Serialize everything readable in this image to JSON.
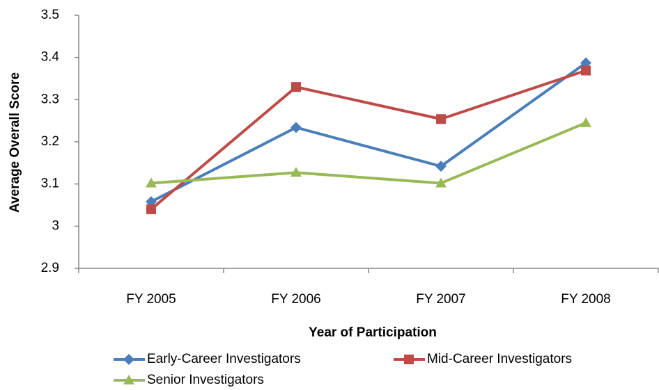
{
  "chart_data": {
    "type": "line",
    "x_label": "Year of Participation",
    "y_label": "Average Overall Score",
    "categories": [
      "FY 2005",
      "FY 2006",
      "FY 2007",
      "FY 2008"
    ],
    "series": [
      {
        "name": "Early-Career Investigators",
        "color": "#4a7ebb",
        "marker": "diamond",
        "values": [
          3.058,
          3.234,
          3.142,
          3.387
        ]
      },
      {
        "name": "Mid-Career Investigators",
        "color": "#be4b48",
        "marker": "square",
        "values": [
          3.04,
          3.33,
          3.254,
          3.369
        ]
      },
      {
        "name": "Senior Investigators",
        "color": "#98b954",
        "marker": "triangle",
        "values": [
          3.102,
          3.127,
          3.102,
          3.245
        ]
      }
    ],
    "ylim": [
      2.9,
      3.5
    ],
    "yticks": [
      2.9,
      3,
      3.1,
      3.2,
      3.3,
      3.4,
      3.5
    ],
    "grid": false,
    "legend": "bottom"
  }
}
